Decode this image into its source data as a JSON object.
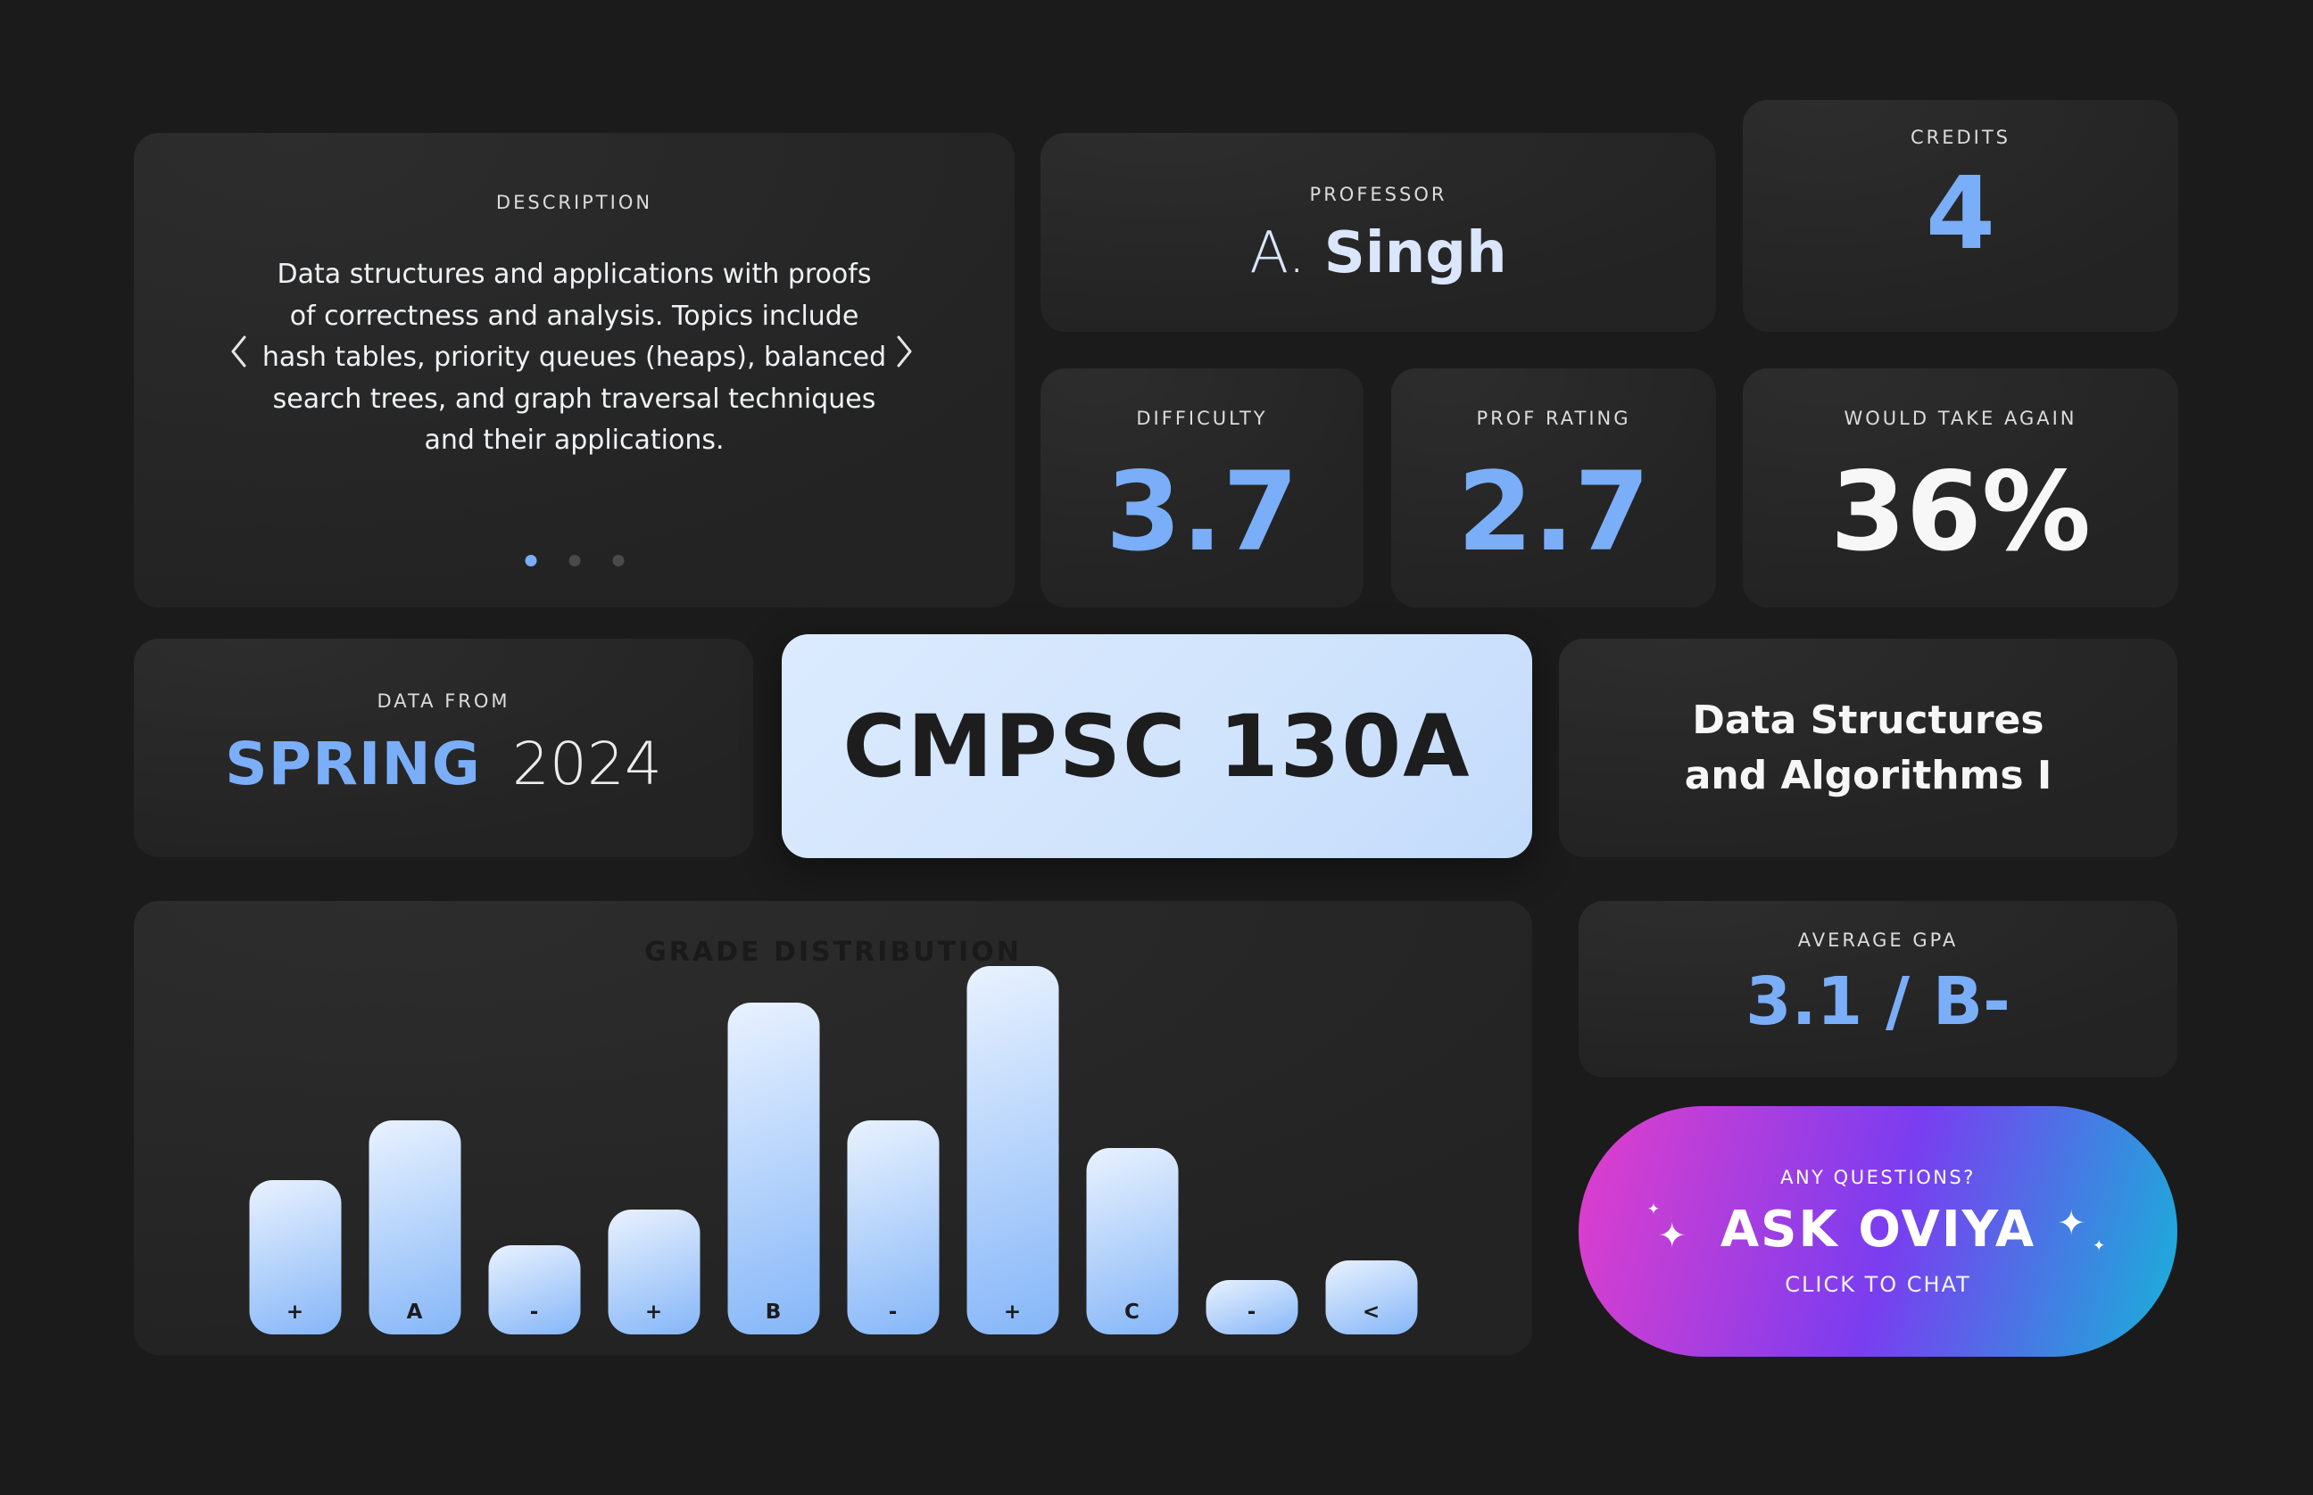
{
  "theme": {
    "accent": "#7aaef8",
    "page_bg": "#1b1b1b",
    "card_bg_top": "#2d2d2d",
    "card_bg_bottom": "#232323",
    "chip_bg": "#cfe3fc",
    "chip_text": "#1d1d1e",
    "bar_from": "#e9f2fe",
    "bar_to": "#85b6f8",
    "pill_from": "#e23ecb",
    "pill_mid": "#7a3df0",
    "pill_to": "#17b2d9"
  },
  "description_card": {
    "label": "DESCRIPTION",
    "text": "Data structures and applications with proofs of correctness and analysis. Topics include hash tables, priority queues (heaps), balanced search trees, and graph traversal techniques and their applications.",
    "dot_count": 3,
    "active_dot": 0
  },
  "professor_card": {
    "label": "PROFESSOR",
    "prefix": "A.",
    "name": "Singh"
  },
  "credits_card": {
    "label": "CREDITS",
    "value": "4"
  },
  "stats": [
    {
      "label": "DIFFICULTY",
      "value": "3.7"
    },
    {
      "label": "PROF RATING",
      "value": "2.7"
    },
    {
      "label": "WOULD TAKE AGAIN",
      "value": "36%"
    }
  ],
  "data_from_card": {
    "label": "DATA FROM",
    "term": "SPRING",
    "year": "2024"
  },
  "course": {
    "code": "CMPSC 130A",
    "name": "Data Structures and Algorithms I"
  },
  "gpa_card": {
    "label": "AVERAGE GPA",
    "value": "3.1 / B-"
  },
  "chart_data": {
    "type": "bar",
    "title": "GRADE DISTRIBUTION",
    "categories": [
      "+",
      "A",
      "-",
      "+",
      "B",
      "-",
      "+",
      "C",
      "-",
      "<"
    ],
    "values": [
      8.5,
      11.8,
      4.9,
      6.9,
      18.3,
      11.8,
      20.3,
      10.3,
      3.0,
      4.1
    ],
    "xlabel": "",
    "ylabel": "",
    "legend": false,
    "grid": false,
    "note": "No numeric axis shown in UI; values are estimated relative percentages read from bar heights (tallest bar = C+)"
  },
  "ask_card": {
    "question": "ANY QUESTIONS?",
    "cta": "ASK OVIYA",
    "sub": "CLICK TO CHAT",
    "sparkle": "✦"
  }
}
